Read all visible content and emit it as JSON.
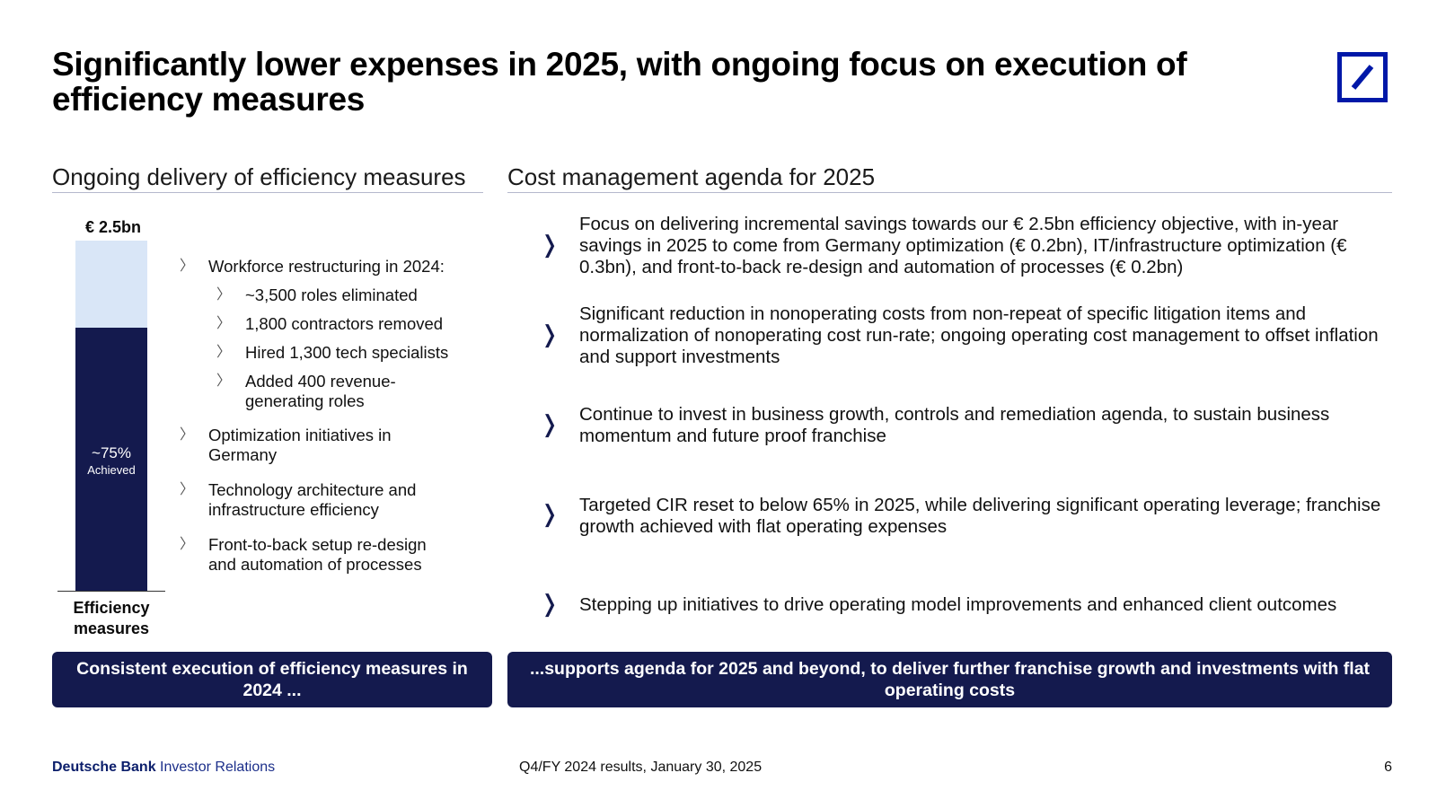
{
  "title": "Significantly lower expenses in 2025, with ongoing focus on execution of efficiency measures",
  "logo": {
    "icon": "deutsche-bank-logo",
    "color": "#0018a8"
  },
  "left_section": {
    "heading": "Ongoing delivery of efficiency measures",
    "bar": {
      "total_label": "€ 2.5bn",
      "achieved_value": "~75%",
      "achieved_label": "Achieved",
      "achieved_fraction": 0.75,
      "axis_label": "Efficiency measures",
      "colors": {
        "achieved": "#141a4e",
        "remaining": "#d9e6f7"
      }
    },
    "bullets": [
      {
        "text": "Workforce restructuring in 2024:"
      },
      {
        "text": "~3,500 roles eliminated"
      },
      {
        "text": "1,800 contractors removed"
      },
      {
        "text": "Hired 1,300 tech specialists"
      },
      {
        "text": "Added 400 revenue-generating roles"
      },
      {
        "text": "Optimization initiatives in Germany"
      },
      {
        "text": "Technology architecture and infrastructure efficiency"
      },
      {
        "text": "Front-to-back setup re-design and automation of processes"
      }
    ]
  },
  "right_section": {
    "heading": "Cost management agenda for 2025",
    "bullets": [
      {
        "text": "Focus on delivering incremental savings towards our € 2.5bn efficiency objective, with in-year savings in 2025 to come from Germany optimization (€ 0.2bn), IT/infrastructure optimization (€ 0.3bn), and front-to-back re-design and automation of processes (€ 0.2bn)"
      },
      {
        "text": "Significant reduction in nonoperating costs from non-repeat of specific litigation items and normalization of nonoperating cost run-rate; ongoing operating cost management to offset inflation and support investments"
      },
      {
        "text": "Continue to invest in business growth, controls and remediation agenda, to sustain business momentum and future proof franchise"
      },
      {
        "text": "Targeted CIR reset to below 65% in 2025, while delivering significant operating leverage; franchise growth achieved with flat operating expenses"
      },
      {
        "text": "Stepping up initiatives to drive operating model improvements and enhanced client outcomes"
      }
    ]
  },
  "banners": {
    "left": "Consistent execution of efficiency measures in 2024 ...",
    "right": "...supports agenda for 2025 and beyond, to deliver further franchise growth and investments with flat operating costs"
  },
  "footer": {
    "brand_bold": "Deutsche Bank",
    "brand_rest": "Investor Relations",
    "center": "Q4/FY 2024 results, January 30, 2025",
    "page": "6"
  },
  "colors": {
    "navy": "#141a4e",
    "brand_blue": "#0018a8",
    "light_blue": "#d9e6f7"
  }
}
